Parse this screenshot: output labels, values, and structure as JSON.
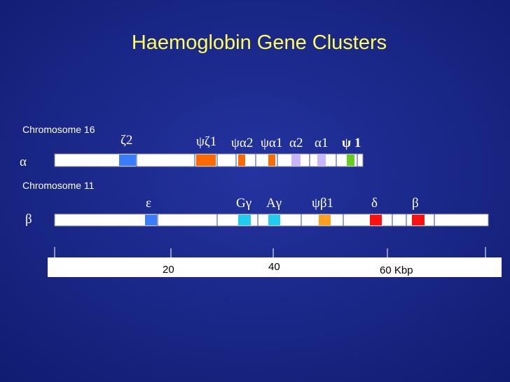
{
  "title": "Haemoglobin Gene Clusters",
  "alpha_cluster": {
    "chromosome": "Chromosome 16",
    "symbol": "α",
    "genes": [
      "ζ2",
      "ψζ1",
      "ψα2",
      "ψα1",
      "α2",
      "α1",
      "ψ 1"
    ]
  },
  "beta_cluster": {
    "chromosome": "Chromosome 11",
    "symbol": "β",
    "genes": [
      "ε",
      "Gγ",
      "Aγ",
      "ψβ1",
      "δ",
      "β"
    ]
  },
  "scale": {
    "labels": [
      "20",
      "40",
      "60 Kbp"
    ]
  }
}
